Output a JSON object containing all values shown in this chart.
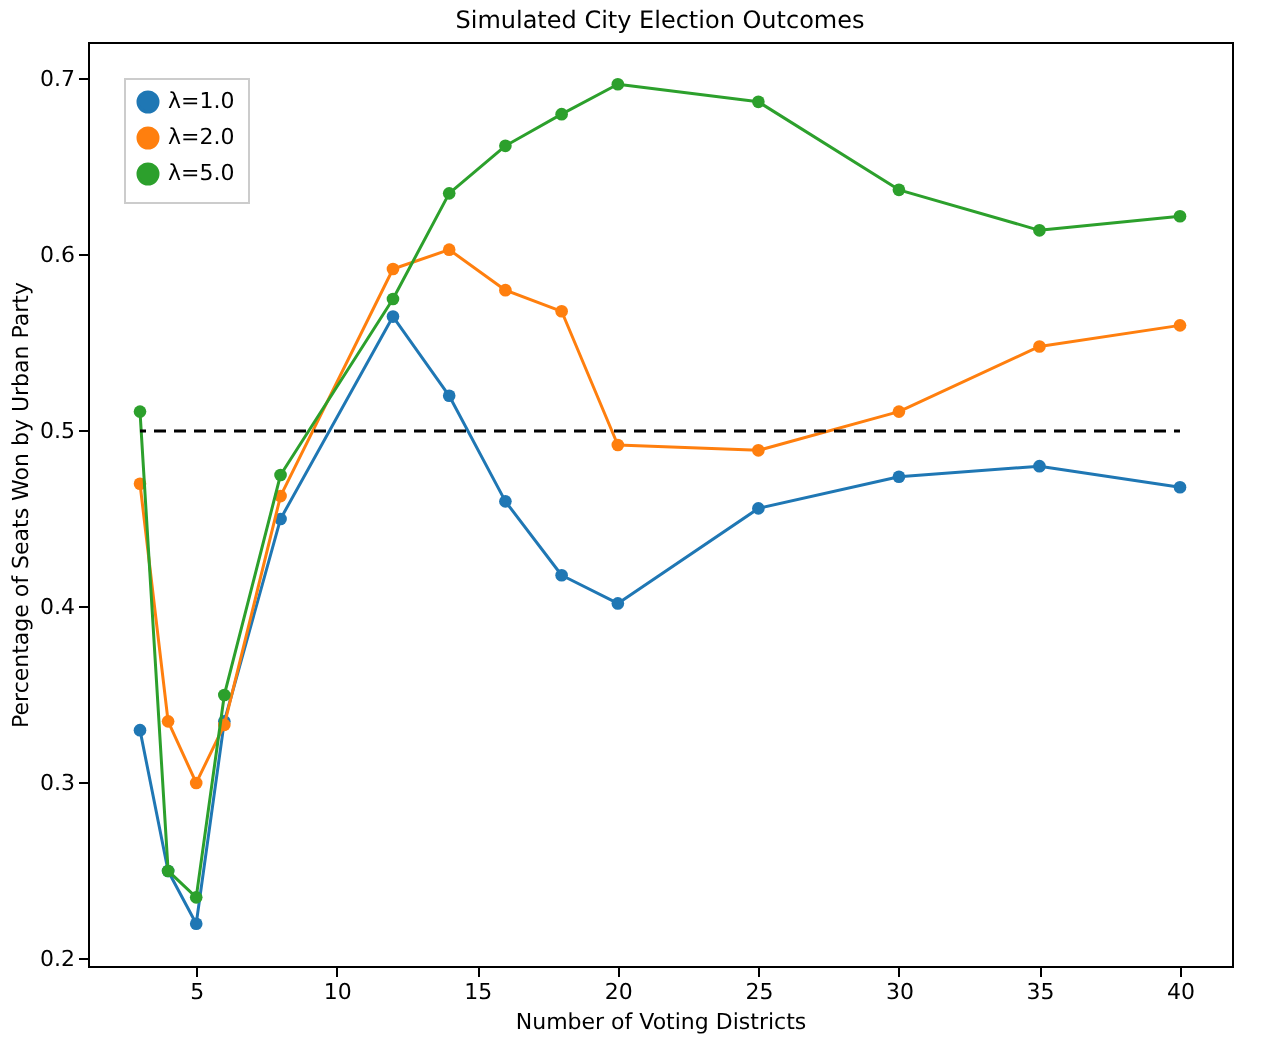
{
  "chart_data": {
    "type": "line",
    "title": "Simulated City Election Outcomes",
    "xlabel": "Number of Voting Districts",
    "ylabel": "Percentage of Seats Won by Urban Party",
    "x": [
      3,
      4,
      5,
      6,
      8,
      12,
      14,
      16,
      18,
      20,
      25,
      30,
      35,
      40
    ],
    "series": [
      {
        "name": "λ=1.0",
        "color": "#1f77b4",
        "marker": "circle",
        "values": [
          0.33,
          0.25,
          0.22,
          0.335,
          0.45,
          0.565,
          0.52,
          0.46,
          0.418,
          0.402,
          0.456,
          0.474,
          0.48,
          0.468
        ]
      },
      {
        "name": "λ=2.0",
        "color": "#ff7f0e",
        "marker": "circle",
        "values": [
          0.47,
          0.335,
          0.3,
          0.333,
          0.463,
          0.592,
          0.603,
          0.58,
          0.568,
          0.492,
          0.489,
          0.511,
          0.548,
          0.56
        ]
      },
      {
        "name": "λ=5.0",
        "color": "#2ca02c",
        "marker": "circle",
        "values": [
          0.511,
          0.25,
          0.235,
          0.35,
          0.475,
          0.575,
          0.635,
          0.662,
          0.68,
          0.697,
          0.687,
          0.637,
          0.614,
          0.622
        ]
      },
      {
        "type": "line",
        "color": "#000000",
        "marker": "none",
        "line_style": "dashed",
        "x": [
          3,
          40
        ],
        "values": [
          0.5,
          0.5
        ]
      }
    ],
    "xlim": [
      1.15,
      41.85
    ],
    "xticks": [
      5,
      10,
      15,
      20,
      25,
      30,
      35,
      40
    ],
    "ylim": [
      0.196,
      0.721
    ],
    "yticks": [
      0.2,
      0.3,
      0.4,
      0.5,
      0.6,
      0.7
    ],
    "legend": "top left",
    "grid": false
  }
}
